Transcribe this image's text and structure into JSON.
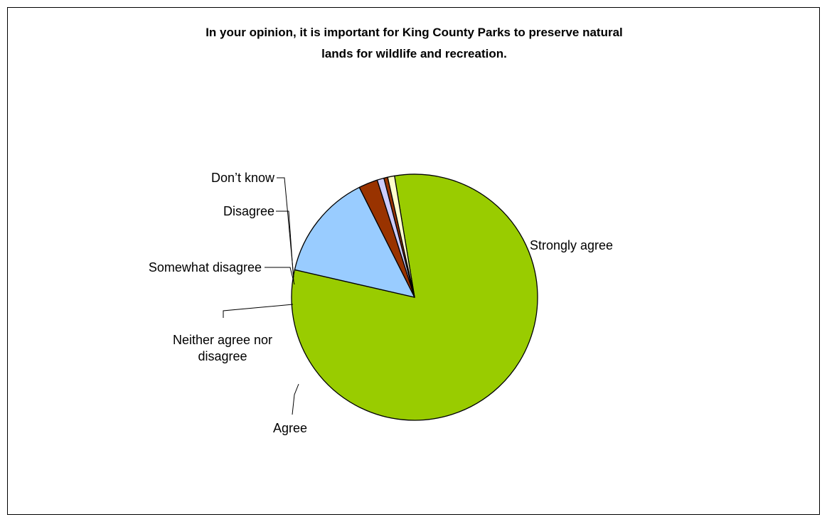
{
  "chart_data": {
    "type": "pie",
    "title_lines": [
      "In your opinion, it is important for King County Parks to preserve natural",
      "lands for wildlife and recreation."
    ],
    "start_angle_deg": 260.6,
    "slices": [
      {
        "name": "Strongly agree",
        "label_lines": [
          "Strongly agree"
        ],
        "value": 81.2,
        "color": "#99cc00"
      },
      {
        "name": "Agree",
        "label_lines": [
          "Agree"
        ],
        "value": 14.0,
        "color": "#99ccff"
      },
      {
        "name": "Neither agree nor disagree",
        "label_lines": [
          "Neither agree nor",
          "disagree"
        ],
        "value": 2.5,
        "color": "#993300"
      },
      {
        "name": "Somewhat disagree",
        "label_lines": [
          "Somewhat disagree"
        ],
        "value": 0.9,
        "color": "#ccccff"
      },
      {
        "name": "Disagree",
        "label_lines": [
          "Disagree"
        ],
        "value": 0.5,
        "color": "#993300"
      },
      {
        "name": "Don’t know",
        "label_lines": [
          "Don’t know"
        ],
        "value": 0.9,
        "color": "#ffffcc"
      }
    ],
    "legend": "none",
    "outline_color": "#000000"
  }
}
